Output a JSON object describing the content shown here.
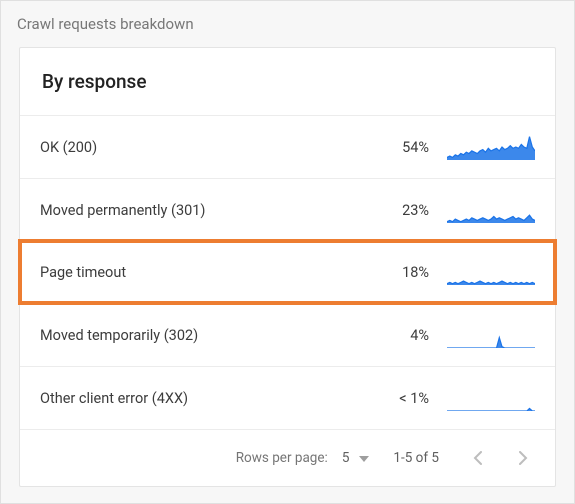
{
  "colors": {
    "outer_bg": "#f7f7f7",
    "card_bg": "#ffffff",
    "border": "#e4e4e4",
    "row_divider": "#ececec",
    "text_muted": "#777777",
    "text": "#3c3c3c",
    "sparkline": "#1a73e8",
    "highlight_border": "#ed7d31",
    "nav_icon": "#bdbdbd"
  },
  "header": {
    "title": "Crawl requests breakdown"
  },
  "card": {
    "title": "By response",
    "rows": [
      {
        "label": "OK (200)",
        "value": "54%",
        "highlighted": false,
        "spark": {
          "points": [
            2,
            3,
            2,
            4,
            3,
            5,
            4,
            6,
            5,
            7,
            6,
            5,
            7,
            8,
            6,
            9,
            7,
            8,
            9,
            7,
            10,
            8,
            9,
            11,
            9,
            10,
            9,
            12,
            10,
            9,
            18,
            10,
            7
          ],
          "baseline": 0
        }
      },
      {
        "label": "Moved permanently (301)",
        "value": "23%",
        "highlighted": false,
        "spark": {
          "points": [
            1,
            2,
            1,
            3,
            2,
            1,
            2,
            3,
            2,
            4,
            3,
            2,
            3,
            4,
            3,
            2,
            3,
            5,
            3,
            4,
            3,
            2,
            3,
            4,
            5,
            3,
            4,
            3,
            2,
            4,
            6,
            3,
            2
          ],
          "baseline": 0
        }
      },
      {
        "label": "Page timeout",
        "value": "18%",
        "highlighted": true,
        "spark": {
          "points": [
            1,
            2,
            1,
            2,
            1,
            2,
            3,
            2,
            1,
            2,
            1,
            2,
            3,
            2,
            1,
            2,
            1,
            2,
            1,
            2,
            3,
            2,
            1,
            2,
            1,
            2,
            1,
            2,
            1,
            2,
            1,
            2,
            1
          ],
          "baseline": 0
        }
      },
      {
        "label": "Moved temporarily (302)",
        "value": "4%",
        "highlighted": false,
        "spark": {
          "points": [
            0,
            0,
            0,
            0,
            0,
            0,
            0,
            0,
            0,
            0,
            0,
            0,
            0,
            0,
            0,
            0,
            0,
            0,
            0,
            8,
            1,
            0,
            0,
            0,
            0,
            0,
            0,
            0,
            0,
            0,
            0,
            0,
            0
          ],
          "baseline": 0
        }
      },
      {
        "label": "Other client error (4XX)",
        "value": "< 1%",
        "highlighted": false,
        "spark": {
          "points": [
            0,
            0,
            0,
            0,
            0,
            0,
            0,
            0,
            0,
            0,
            0,
            0,
            0,
            0,
            0,
            0,
            0,
            0,
            0,
            0,
            0,
            0,
            0,
            0,
            0,
            0,
            0,
            0,
            0,
            0,
            2,
            0,
            0
          ],
          "baseline": 0
        }
      }
    ]
  },
  "footer": {
    "rows_per_page_label": "Rows per page:",
    "rows_per_page_value": "5",
    "range": "1-5 of 5"
  },
  "spark_style": {
    "width": 88,
    "height": 26,
    "stroke": "#1a73e8",
    "fill": "#1a73e8",
    "stroke_width": 1.2,
    "y_max": 20
  }
}
